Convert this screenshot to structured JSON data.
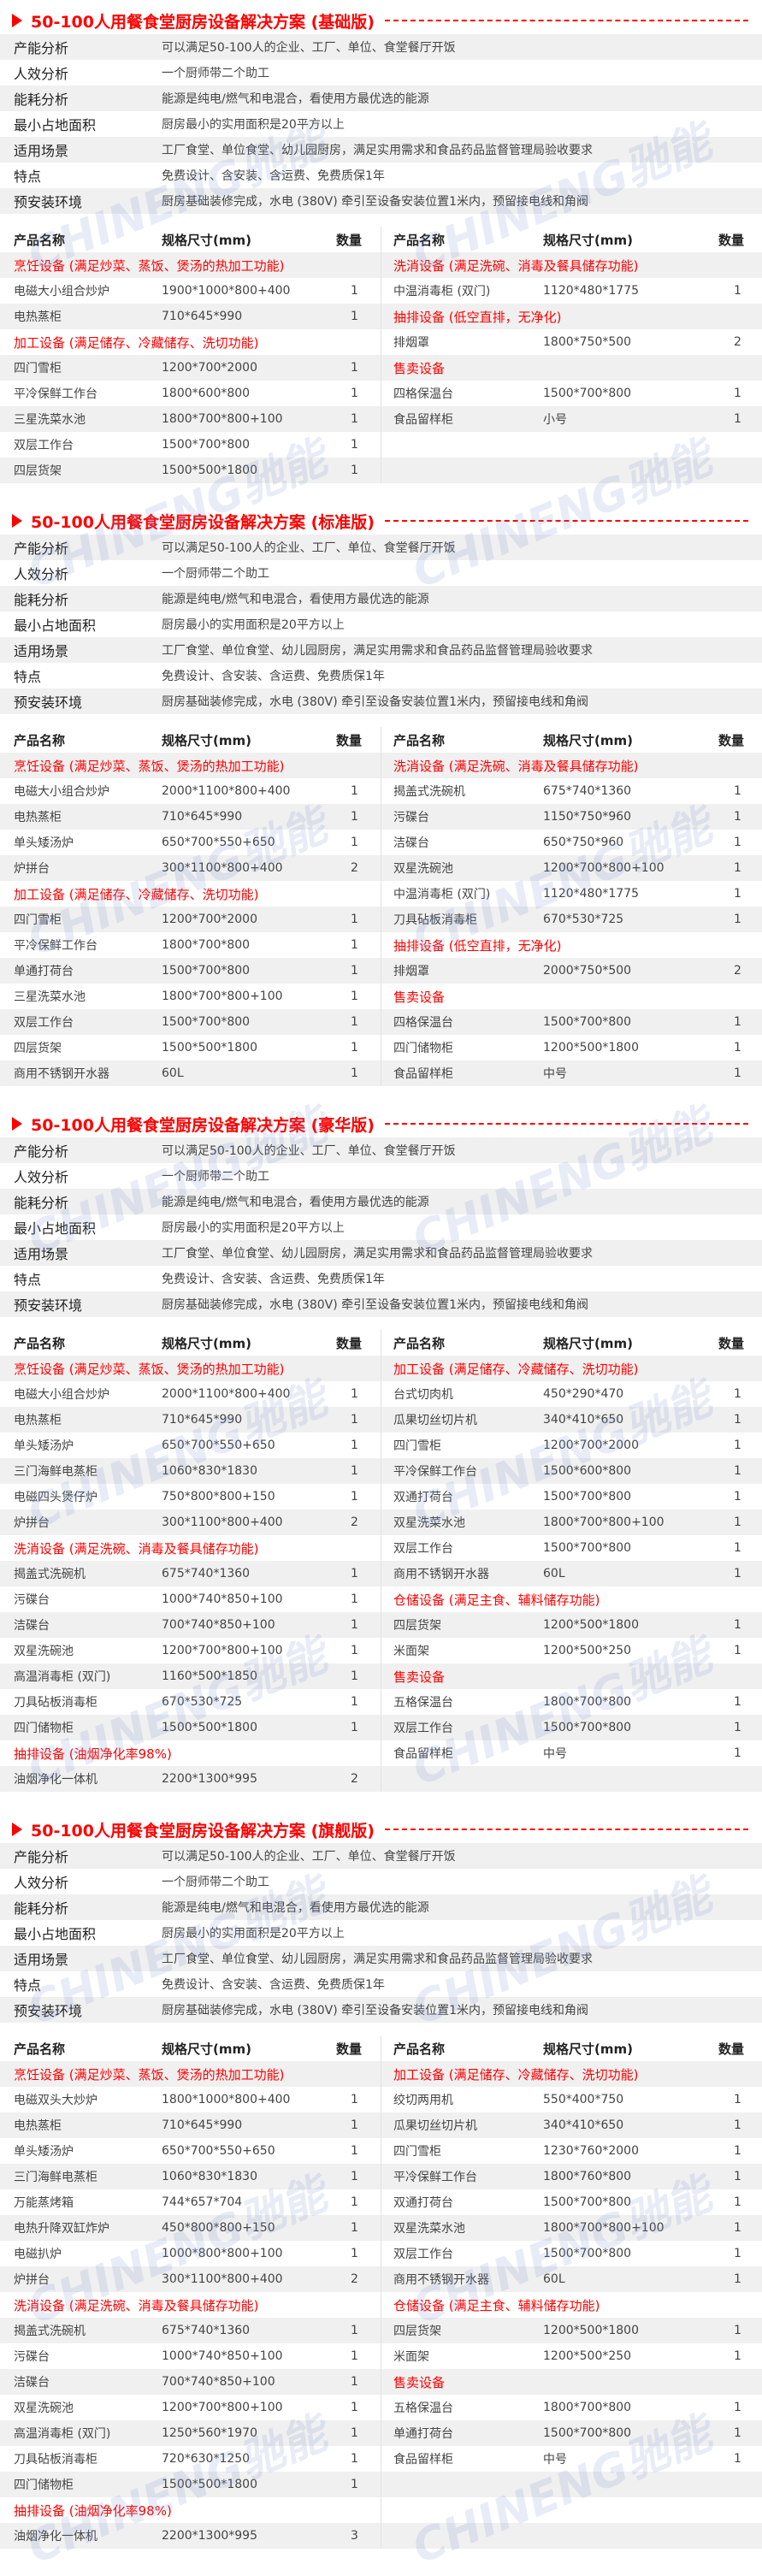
{
  "watermark": "CHINENG驰能",
  "colors": {
    "accent": "#ff0000",
    "stripe": "#f0f0f0"
  },
  "table_headers": {
    "name": "产品名称",
    "spec": "规格尺寸(mm)",
    "qty": "数量"
  },
  "sections": [
    {
      "title": "50-100人用餐食堂厨房设备解决方案 (基础版)",
      "info": [
        {
          "label": "产能分析",
          "value": "可以满足50-100人的企业、工厂、单位、食堂餐厅开饭"
        },
        {
          "label": "人效分析",
          "value": "一个厨师带二个助工"
        },
        {
          "label": "能耗分析",
          "value": "能源是纯电/燃气和电混合，看使用方最优选的能源"
        },
        {
          "label": "最小占地面积",
          "value": "厨房最小的实用面积是20平方以上"
        },
        {
          "label": "适用场景",
          "value": "工厂食堂、单位食堂、幼儿园厨房，满足实用需求和食品药品监督管理局验收要求"
        },
        {
          "label": "特点",
          "value": "免费设计、含安装、含运费、免费质保1年"
        },
        {
          "label": "预安装环境",
          "value": "厨房基础装修完成，水电 (380V) 牵引至设备安装位置1米内，预留接电线和角阀"
        }
      ],
      "left": [
        {
          "category": "烹饪设备 (满足炒菜、蒸饭、煲汤的热加工功能)"
        },
        {
          "name": "电磁大小组合炒炉",
          "spec": "1900*1000*800+400",
          "qty": "1"
        },
        {
          "name": "电热蒸柜",
          "spec": "710*645*990",
          "qty": "1"
        },
        {
          "category": "加工设备 (满足储存、冷藏储存、洗切功能)"
        },
        {
          "name": "四门雪柜",
          "spec": "1200*700*2000",
          "qty": "1"
        },
        {
          "name": "平冷保鲜工作台",
          "spec": "1800*600*800",
          "qty": "1"
        },
        {
          "name": "三星洗菜水池",
          "spec": "1800*700*800+100",
          "qty": "1"
        },
        {
          "name": "双层工作台",
          "spec": "1500*700*800",
          "qty": "1"
        },
        {
          "name": "四层货架",
          "spec": "1500*500*1800",
          "qty": "1"
        }
      ],
      "right": [
        {
          "category": "洗消设备 (满足洗碗、消毒及餐具储存功能)"
        },
        {
          "name": "中温消毒柜 (双门)",
          "spec": "1120*480*1775",
          "qty": "1"
        },
        {
          "category": "抽排设备 (低空直排，无净化)"
        },
        {
          "name": "排烟罩",
          "spec": "1800*750*500",
          "qty": "2"
        },
        {
          "category": "售卖设备"
        },
        {
          "name": "四格保温台",
          "spec": "1500*700*800",
          "qty": "1"
        },
        {
          "name": "食品留样柜",
          "spec": "小号",
          "qty": "1"
        }
      ]
    },
    {
      "title": "50-100人用餐食堂厨房设备解决方案 (标准版)",
      "info": [
        {
          "label": "产能分析",
          "value": "可以满足50-100人的企业、工厂、单位、食堂餐厅开饭"
        },
        {
          "label": "人效分析",
          "value": "一个厨师带二个助工"
        },
        {
          "label": "能耗分析",
          "value": "能源是纯电/燃气和电混合，看使用方最优选的能源"
        },
        {
          "label": "最小占地面积",
          "value": "厨房最小的实用面积是20平方以上"
        },
        {
          "label": "适用场景",
          "value": "工厂食堂、单位食堂、幼儿园厨房，满足实用需求和食品药品监督管理局验收要求"
        },
        {
          "label": "特点",
          "value": "免费设计、含安装、含运费、免费质保1年"
        },
        {
          "label": "预安装环境",
          "value": "厨房基础装修完成，水电 (380V) 牵引至设备安装位置1米内，预留接电线和角阀"
        }
      ],
      "left": [
        {
          "category": "烹饪设备 (满足炒菜、蒸饭、煲汤的热加工功能)"
        },
        {
          "name": "电磁大小组合炒炉",
          "spec": "2000*1100*800+400",
          "qty": "1"
        },
        {
          "name": "电热蒸柜",
          "spec": "710*645*990",
          "qty": "1"
        },
        {
          "name": "单头矮汤炉",
          "spec": "650*700*550+650",
          "qty": "1"
        },
        {
          "name": "炉拼台",
          "spec": "300*1100*800+400",
          "qty": "2"
        },
        {
          "category": "加工设备 (满足储存、冷藏储存、洗切功能)"
        },
        {
          "name": "四门雪柜",
          "spec": "1200*700*2000",
          "qty": "1"
        },
        {
          "name": "平冷保鲜工作台",
          "spec": "1800*700*800",
          "qty": "1"
        },
        {
          "name": "单通打荷台",
          "spec": "1500*700*800",
          "qty": "1"
        },
        {
          "name": "三星洗菜水池",
          "spec": "1800*700*800+100",
          "qty": "1"
        },
        {
          "name": "双层工作台",
          "spec": "1500*700*800",
          "qty": "1"
        },
        {
          "name": "四层货架",
          "spec": "1500*500*1800",
          "qty": "1"
        },
        {
          "name": "商用不锈钢开水器",
          "spec": "60L",
          "qty": "1"
        }
      ],
      "right": [
        {
          "category": "洗消设备 (满足洗碗、消毒及餐具储存功能)"
        },
        {
          "name": "揭盖式洗碗机",
          "spec": "675*740*1360",
          "qty": "1"
        },
        {
          "name": "污碟台",
          "spec": "1150*750*960",
          "qty": "1"
        },
        {
          "name": "洁碟台",
          "spec": "650*750*960",
          "qty": "1"
        },
        {
          "name": "双星洗碗池",
          "spec": "1200*700*800+100",
          "qty": "1"
        },
        {
          "name": "中温消毒柜 (双门)",
          "spec": "1120*480*1775",
          "qty": "1"
        },
        {
          "name": "刀具砧板消毒柜",
          "spec": "670*530*725",
          "qty": "1"
        },
        {
          "category": "抽排设备 (低空直排，无净化)"
        },
        {
          "name": "排烟罩",
          "spec": "2000*750*500",
          "qty": "2"
        },
        {
          "category": "售卖设备"
        },
        {
          "name": "四格保温台",
          "spec": "1500*700*800",
          "qty": "1"
        },
        {
          "name": "四门储物柜",
          "spec": "1200*500*1800",
          "qty": "1"
        },
        {
          "name": "食品留样柜",
          "spec": "中号",
          "qty": "1"
        }
      ]
    },
    {
      "title": "50-100人用餐食堂厨房设备解决方案 (豪华版)",
      "info": [
        {
          "label": "产能分析",
          "value": "可以满足50-100人的企业、工厂、单位、食堂餐厅开饭"
        },
        {
          "label": "人效分析",
          "value": "一个厨师带二个助工"
        },
        {
          "label": "能耗分析",
          "value": "能源是纯电/燃气和电混合，看使用方最优选的能源"
        },
        {
          "label": "最小占地面积",
          "value": "厨房最小的实用面积是20平方以上"
        },
        {
          "label": "适用场景",
          "value": "工厂食堂、单位食堂、幼儿园厨房，满足实用需求和食品药品监督管理局验收要求"
        },
        {
          "label": "特点",
          "value": "免费设计、含安装、含运费、免费质保1年"
        },
        {
          "label": "预安装环境",
          "value": "厨房基础装修完成，水电 (380V) 牵引至设备安装位置1米内，预留接电线和角阀"
        }
      ],
      "left": [
        {
          "category": "烹饪设备 (满足炒菜、蒸饭、煲汤的热加工功能)"
        },
        {
          "name": "电磁大小组合炒炉",
          "spec": "2000*1100*800+400",
          "qty": "1"
        },
        {
          "name": "电热蒸柜",
          "spec": "710*645*990",
          "qty": "1"
        },
        {
          "name": "单头矮汤炉",
          "spec": "650*700*550+650",
          "qty": "1"
        },
        {
          "name": "三门海鲜电蒸柜",
          "spec": "1060*830*1830",
          "qty": "1"
        },
        {
          "name": "电磁四头煲仔炉",
          "spec": "750*800*800+150",
          "qty": "1"
        },
        {
          "name": "炉拼台",
          "spec": "300*1100*800+400",
          "qty": "2"
        },
        {
          "category": "洗消设备 (满足洗碗、消毒及餐具储存功能)"
        },
        {
          "name": "揭盖式洗碗机",
          "spec": "675*740*1360",
          "qty": "1"
        },
        {
          "name": "污碟台",
          "spec": "1000*740*850+100",
          "qty": "1"
        },
        {
          "name": "洁碟台",
          "spec": "700*740*850+100",
          "qty": "1"
        },
        {
          "name": "双星洗碗池",
          "spec": "1200*700*800+100",
          "qty": "1"
        },
        {
          "name": "高温消毒柜 (双门)",
          "spec": "1160*500*1850",
          "qty": "1"
        },
        {
          "name": "刀具砧板消毒柜",
          "spec": "670*530*725",
          "qty": "1"
        },
        {
          "name": "四门储物柜",
          "spec": "1500*500*1800",
          "qty": "1"
        },
        {
          "category": "抽排设备 (油烟净化率98%)"
        },
        {
          "name": "油烟净化一体机",
          "spec": "2200*1300*995",
          "qty": "2"
        }
      ],
      "right": [
        {
          "category": "加工设备 (满足储存、冷藏储存、洗切功能)"
        },
        {
          "name": "台式切肉机",
          "spec": "450*290*470",
          "qty": "1"
        },
        {
          "name": "瓜果切丝切片机",
          "spec": "340*410*650",
          "qty": "1"
        },
        {
          "name": "四门雪柜",
          "spec": "1200*700*2000",
          "qty": "1"
        },
        {
          "name": "平冷保鲜工作台",
          "spec": "1500*600*800",
          "qty": "1"
        },
        {
          "name": "双通打荷台",
          "spec": "1500*700*800",
          "qty": "1"
        },
        {
          "name": "双星洗菜水池",
          "spec": "1800*700*800+100",
          "qty": "1"
        },
        {
          "name": "双层工作台",
          "spec": "1500*700*800",
          "qty": "1"
        },
        {
          "name": "商用不锈钢开水器",
          "spec": "60L",
          "qty": "1"
        },
        {
          "category": "仓储设备 (满足主食、辅料储存功能)"
        },
        {
          "name": "四层货架",
          "spec": "1200*500*1800",
          "qty": "1"
        },
        {
          "name": "米面架",
          "spec": "1200*500*250",
          "qty": "1"
        },
        {
          "category": "售卖设备"
        },
        {
          "name": "五格保温台",
          "spec": "1800*700*800",
          "qty": "1"
        },
        {
          "name": "双层工作台",
          "spec": "1500*700*800",
          "qty": "1"
        },
        {
          "name": "食品留样柜",
          "spec": "中号",
          "qty": "1"
        }
      ]
    },
    {
      "title": "50-100人用餐食堂厨房设备解决方案 (旗舰版)",
      "info": [
        {
          "label": "产能分析",
          "value": "可以满足50-100人的企业、工厂、单位、食堂餐厅开饭"
        },
        {
          "label": "人效分析",
          "value": "一个厨师带二个助工"
        },
        {
          "label": "能耗分析",
          "value": "能源是纯电/燃气和电混合，看使用方最优选的能源"
        },
        {
          "label": "最小占地面积",
          "value": "厨房最小的实用面积是20平方以上"
        },
        {
          "label": "适用场景",
          "value": "工厂食堂、单位食堂、幼儿园厨房，满足实用需求和食品药品监督管理局验收要求"
        },
        {
          "label": "特点",
          "value": "免费设计、含安装、含运费、免费质保1年"
        },
        {
          "label": "预安装环境",
          "value": "厨房基础装修完成，水电 (380V) 牵引至设备安装位置1米内，预留接电线和角阀"
        }
      ],
      "left": [
        {
          "category": "烹饪设备 (满足炒菜、蒸饭、煲汤的热加工功能)"
        },
        {
          "name": "电磁双头大炒炉",
          "spec": "1800*1000*800+400",
          "qty": "1"
        },
        {
          "name": "电热蒸柜",
          "spec": "710*645*990",
          "qty": "1"
        },
        {
          "name": "单头矮汤炉",
          "spec": "650*700*550+650",
          "qty": "1"
        },
        {
          "name": "三门海鲜电蒸柜",
          "spec": "1060*830*1830",
          "qty": "1"
        },
        {
          "name": "万能蒸烤箱",
          "spec": "744*657*704",
          "qty": "1"
        },
        {
          "name": "电热升降双缸炸炉",
          "spec": "450*800*800+150",
          "qty": "1"
        },
        {
          "name": "电磁扒炉",
          "spec": "1000*800*800+100",
          "qty": "1"
        },
        {
          "name": "炉拼台",
          "spec": "300*1100*800+400",
          "qty": "2"
        },
        {
          "category": "洗消设备 (满足洗碗、消毒及餐具储存功能)"
        },
        {
          "name": "揭盖式洗碗机",
          "spec": "675*740*1360",
          "qty": "1"
        },
        {
          "name": "污碟台",
          "spec": "1000*740*850+100",
          "qty": "1"
        },
        {
          "name": "洁碟台",
          "spec": "700*740*850+100",
          "qty": "1"
        },
        {
          "name": "双星洗碗池",
          "spec": "1200*700*800+100",
          "qty": "1"
        },
        {
          "name": "高温消毒柜 (双门)",
          "spec": "1250*560*1970",
          "qty": "1"
        },
        {
          "name": "刀具砧板消毒柜",
          "spec": "720*630*1250",
          "qty": "1"
        },
        {
          "name": "四门储物柜",
          "spec": "1500*500*1800",
          "qty": "1"
        },
        {
          "category": "抽排设备 (油烟净化率98%)"
        },
        {
          "name": "油烟净化一体机",
          "spec": "2200*1300*995",
          "qty": "3"
        }
      ],
      "right": [
        {
          "category": "加工设备 (满足储存、冷藏储存、洗切功能)"
        },
        {
          "name": "绞切两用机",
          "spec": "550*400*750",
          "qty": "1"
        },
        {
          "name": "瓜果切丝切片机",
          "spec": "340*410*650",
          "qty": "1"
        },
        {
          "name": "四门雪柜",
          "spec": "1230*760*2000",
          "qty": "1"
        },
        {
          "name": "平冷保鲜工作台",
          "spec": "1800*760*800",
          "qty": "1"
        },
        {
          "name": "双通打荷台",
          "spec": "1500*700*800",
          "qty": "1"
        },
        {
          "name": "双星洗菜水池",
          "spec": "1800*700*800+100",
          "qty": "1"
        },
        {
          "name": "双层工作台",
          "spec": "1500*700*800",
          "qty": "1"
        },
        {
          "name": "商用不锈钢开水器",
          "spec": "60L",
          "qty": "1"
        },
        {
          "category": "仓储设备 (满足主食、辅料储存功能)"
        },
        {
          "name": "四层货架",
          "spec": "1200*500*1800",
          "qty": "1"
        },
        {
          "name": "米面架",
          "spec": "1200*500*250",
          "qty": "1"
        },
        {
          "category": "售卖设备"
        },
        {
          "name": "五格保温台",
          "spec": "1800*700*800",
          "qty": "1"
        },
        {
          "name": "单通打荷台",
          "spec": "1500*700*800",
          "qty": "1"
        },
        {
          "name": "食品留样柜",
          "spec": "中号",
          "qty": "1"
        }
      ]
    }
  ]
}
